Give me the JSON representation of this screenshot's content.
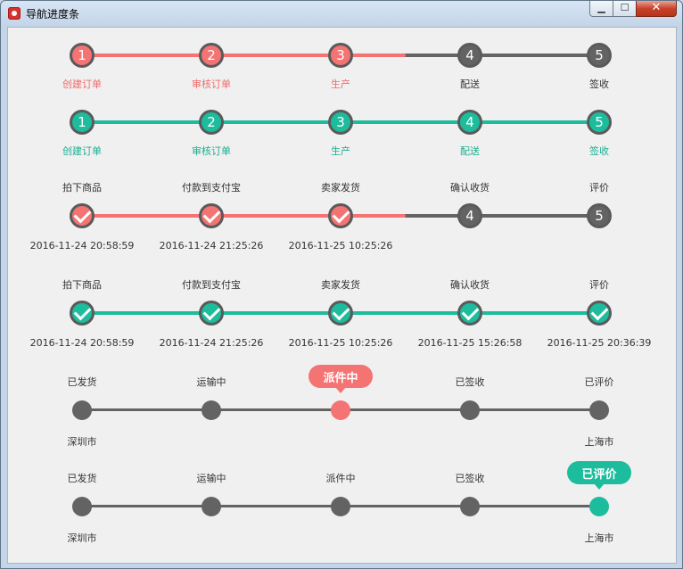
{
  "window": {
    "title": "导航进度条",
    "minimize_icon": "minimize-icon",
    "maximize_icon": "maximize-icon",
    "close_icon": "close-icon"
  },
  "colors": {
    "red": "#f47373",
    "teal": "#1dbc9c",
    "gray": "#636363"
  },
  "progress1": {
    "steps": [
      "创建订单",
      "审核订单",
      "生产",
      "配送",
      "签收"
    ],
    "numbers": [
      "1",
      "2",
      "3",
      "4",
      "5"
    ],
    "completed": 3,
    "progress": 0.5
  },
  "progress2": {
    "steps": [
      "创建订单",
      "审核订单",
      "生产",
      "配送",
      "签收"
    ],
    "numbers": [
      "1",
      "2",
      "3",
      "4",
      "5"
    ],
    "completed": 5,
    "progress": 1.0
  },
  "progress3": {
    "steps": [
      "拍下商品",
      "付款到支付宝",
      "卖家发货",
      "确认收货",
      "评价"
    ],
    "numbers": [
      "4",
      "5"
    ],
    "times": [
      "2016-11-24 20:58:59",
      "2016-11-24 21:25:26",
      "2016-11-25 10:25:26"
    ],
    "completed": 3,
    "progress": 0.5
  },
  "progress4": {
    "steps": [
      "拍下商品",
      "付款到支付宝",
      "卖家发货",
      "确认收货",
      "评价"
    ],
    "times": [
      "2016-11-24 20:58:59",
      "2016-11-24 21:25:26",
      "2016-11-25 10:25:26",
      "2016-11-25 15:26:58",
      "2016-11-25 20:36:39"
    ],
    "completed": 5,
    "progress": 1.0
  },
  "progress5": {
    "steps": [
      "已发货",
      "运输中",
      "派件中",
      "已签收",
      "已评价"
    ],
    "active": 2,
    "tip": "派件中",
    "from": "深圳市",
    "to": "上海市"
  },
  "progress6": {
    "steps": [
      "已发货",
      "运输中",
      "派件中",
      "已签收",
      "已评价"
    ],
    "active": 4,
    "tip": "已评价",
    "from": "深圳市",
    "to": "上海市"
  }
}
